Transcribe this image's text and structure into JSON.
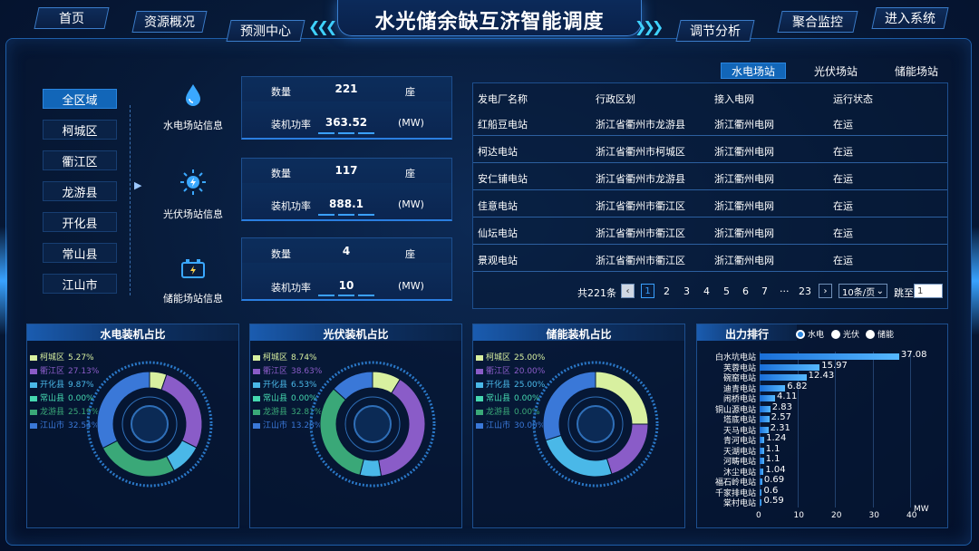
{
  "header": {
    "title": "水光储余缺互济智能调度",
    "nav_left": [
      "首页",
      "资源概况",
      "预测中心"
    ],
    "nav_right": [
      "调节分析",
      "聚合监控",
      "进入系统"
    ]
  },
  "regions": [
    "全区域",
    "柯城区",
    "衢江区",
    "龙游县",
    "开化县",
    "常山县",
    "江山市"
  ],
  "stations": [
    {
      "label": "水电场站信息",
      "icon": "water-drop-icon",
      "count_label": "数量",
      "count": "221",
      "count_unit": "座",
      "power_label": "装机功率",
      "power": "363.52",
      "power_unit": "(MW)"
    },
    {
      "label": "光伏场站信息",
      "icon": "solar-icon",
      "count_label": "数量",
      "count": "117",
      "count_unit": "座",
      "power_label": "装机功率",
      "power": "888.1",
      "power_unit": "(MW)"
    },
    {
      "label": "储能场站信息",
      "icon": "battery-icon",
      "count_label": "数量",
      "count": "4",
      "count_unit": "座",
      "power_label": "装机功率",
      "power": "10",
      "power_unit": "(MW)"
    }
  ],
  "tabs": [
    "水电场站",
    "光伏场站",
    "储能场站"
  ],
  "table": {
    "headers": [
      "发电厂名称",
      "行政区划",
      "接入电网",
      "运行状态"
    ],
    "rows": [
      [
        "红船豆电站",
        "浙江省衢州市龙游县",
        "浙江衢州电网",
        "在运"
      ],
      [
        "柯达电站",
        "浙江省衢州市柯城区",
        "浙江衢州电网",
        "在运"
      ],
      [
        "安仁铺电站",
        "浙江省衢州市龙游县",
        "浙江衢州电网",
        "在运"
      ],
      [
        "佳意电站",
        "浙江省衢州市衢江区",
        "浙江衢州电网",
        "在运"
      ],
      [
        "仙坛电站",
        "浙江省衢州市衢江区",
        "浙江衢州电网",
        "在运"
      ],
      [
        "景观电站",
        "浙江省衢州市衢江区",
        "浙江衢州电网",
        "在运"
      ]
    ]
  },
  "pagination": {
    "total": "共221条",
    "pages": [
      "1",
      "2",
      "3",
      "4",
      "5",
      "6",
      "7",
      "···",
      "23"
    ],
    "prev": "‹",
    "next": "›",
    "page_size": "10条/页",
    "jump_label": "跳至",
    "jump_value": "1"
  },
  "pies": [
    {
      "title": "水电装机占比",
      "legend": [
        [
          "柯城区",
          "5.27%"
        ],
        [
          "衢江区",
          "27.13%"
        ],
        [
          "开化县",
          "9.87%"
        ],
        [
          "常山县",
          "0.00%"
        ],
        [
          "龙游县",
          "25.19%"
        ],
        [
          "江山市",
          "32.54%"
        ]
      ],
      "values": [
        5.27,
        27.13,
        9.87,
        0,
        25.19,
        32.54
      ]
    },
    {
      "title": "光伏装机占比",
      "legend": [
        [
          "柯城区",
          "8.74%"
        ],
        [
          "衢江区",
          "38.63%"
        ],
        [
          "开化县",
          "6.53%"
        ],
        [
          "常山县",
          "0.00%"
        ],
        [
          "龙游县",
          "32.81%"
        ],
        [
          "江山市",
          "13.28%"
        ]
      ],
      "values": [
        8.74,
        38.63,
        6.53,
        0,
        32.81,
        13.28
      ]
    },
    {
      "title": "储能装机占比",
      "legend": [
        [
          "柯城区",
          "25.00%"
        ],
        [
          "衢江区",
          "20.00%"
        ],
        [
          "开化县",
          "25.00%"
        ],
        [
          "常山县",
          "0.00%"
        ],
        [
          "龙游县",
          "0.00%"
        ],
        [
          "江山市",
          "30.00%"
        ]
      ],
      "values": [
        25,
        20,
        25,
        0,
        0,
        30
      ]
    }
  ],
  "pie_colors": [
    "#d8f0a0",
    "#8a5cc8",
    "#4ab8e8",
    "#45d8b0",
    "#3aa878",
    "#3a78d8"
  ],
  "ranking": {
    "title": "出力排行",
    "options": [
      "水电",
      "光伏",
      "储能"
    ],
    "unit": "MW",
    "ticks": [
      "0",
      "10",
      "20",
      "30",
      "40"
    ],
    "max": 40,
    "items": [
      {
        "name": "白水坑电站",
        "value": 37.08,
        "label": "37.08"
      },
      {
        "name": "芙蓉电站",
        "value": 15.97,
        "label": "15.97"
      },
      {
        "name": "碗窑电站",
        "value": 12.43,
        "label": "12.43"
      },
      {
        "name": "迪青电站",
        "value": 6.82,
        "label": "6.82"
      },
      {
        "name": "闹桥电站",
        "value": 4.11,
        "label": "4.11"
      },
      {
        "name": "铜山源电站",
        "value": 2.83,
        "label": "2.83"
      },
      {
        "name": "塔底电站",
        "value": 2.57,
        "label": "2.57"
      },
      {
        "name": "天马电站",
        "value": 2.31,
        "label": "2.31"
      },
      {
        "name": "青河电站",
        "value": 1.24,
        "label": "1.24"
      },
      {
        "name": "天湖电站",
        "value": 1.1,
        "label": "1.1"
      },
      {
        "name": "河畴电站",
        "value": 1.1,
        "label": "1.1"
      },
      {
        "name": "沐尘电站",
        "value": 1.04,
        "label": "1.04"
      },
      {
        "name": "福石岭电站",
        "value": 0.69,
        "label": "0.69"
      },
      {
        "name": "千家排电站",
        "value": 0.6,
        "label": "0.6"
      },
      {
        "name": "棠村电站",
        "value": 0.59,
        "label": "0.59"
      }
    ]
  }
}
